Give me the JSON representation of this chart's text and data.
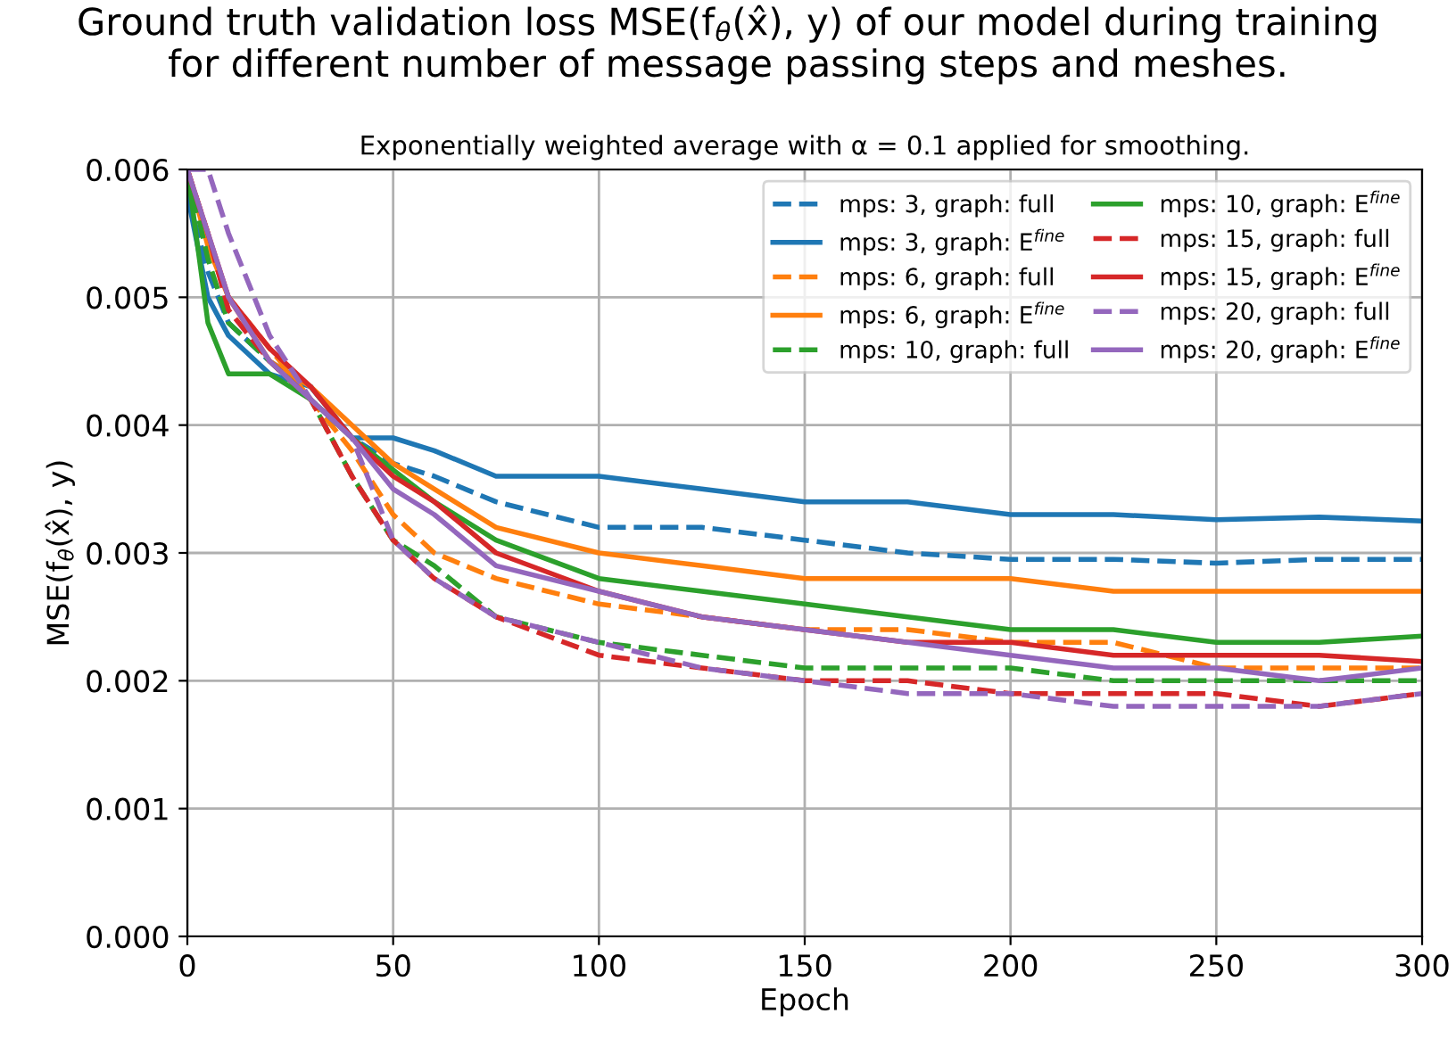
{
  "chart_data": {
    "type": "line",
    "title": "Ground truth validation loss MSE(f$_{θ}$(x̂), y) of our model during training\nfor different number of message passing steps and meshes.",
    "subtitle": "Exponentially weighted average with α = 0.1 applied for smoothing.",
    "xlabel": "Epoch",
    "ylabel": "MSE(f$_{θ}$(x̂), y)",
    "x": [
      0,
      5,
      10,
      20,
      30,
      40,
      50,
      60,
      75,
      100,
      125,
      150,
      175,
      200,
      225,
      250,
      275,
      300
    ],
    "xlim": [
      0,
      300
    ],
    "xticks": [
      0,
      50,
      100,
      150,
      200,
      250,
      300
    ],
    "ylim": [
      0,
      0.006
    ],
    "yticks": [
      {
        "value": 0,
        "label": "0.000"
      },
      {
        "value": 0.001,
        "label": "0.001"
      },
      {
        "value": 0.002,
        "label": "0.002"
      },
      {
        "value": 0.003,
        "label": "0.003"
      },
      {
        "value": 0.004,
        "label": "0.004"
      },
      {
        "value": 0.005,
        "label": "0.005"
      },
      {
        "value": 0.006,
        "label": "0.006"
      }
    ],
    "grid": true,
    "legend": "top right",
    "series": [
      {
        "name": "mps: 3, graph: full",
        "color": "#1f77b4",
        "line_style": "dashed",
        "values": [
          0.0058,
          0.0052,
          0.0048,
          0.0045,
          0.0043,
          0.0039,
          0.0037,
          0.0036,
          0.0034,
          0.0032,
          0.0032,
          0.0031,
          0.003,
          0.00295,
          0.00295,
          0.00292,
          0.00295,
          0.00295
        ]
      },
      {
        "name": "mps: 3, graph: E$^{fine}$",
        "color": "#1f77b4",
        "line_style": "solid",
        "values": [
          0.0058,
          0.005,
          0.0047,
          0.0044,
          0.0043,
          0.0039,
          0.0039,
          0.0038,
          0.0036,
          0.0036,
          0.0035,
          0.0034,
          0.0034,
          0.0033,
          0.0033,
          0.00326,
          0.00328,
          0.00325
        ]
      },
      {
        "name": "mps: 6, graph: full",
        "color": "#ff7f0e",
        "line_style": "dashed",
        "values": [
          0.006,
          0.0054,
          0.005,
          0.0046,
          0.0042,
          0.0038,
          0.0033,
          0.003,
          0.0028,
          0.0026,
          0.0025,
          0.0024,
          0.0024,
          0.0023,
          0.0023,
          0.0021,
          0.0021,
          0.0021
        ]
      },
      {
        "name": "mps: 6, graph: E$^{fine}$",
        "color": "#ff7f0e",
        "line_style": "solid",
        "values": [
          0.006,
          0.0054,
          0.005,
          0.0045,
          0.0043,
          0.004,
          0.0037,
          0.0035,
          0.0032,
          0.003,
          0.0029,
          0.0028,
          0.0028,
          0.0028,
          0.0027,
          0.0027,
          0.0027,
          0.0027
        ]
      },
      {
        "name": "mps: 10, graph: full",
        "color": "#2ca02c",
        "line_style": "dashed",
        "values": [
          0.006,
          0.0053,
          0.0048,
          0.0045,
          0.0042,
          0.0036,
          0.0031,
          0.0029,
          0.0025,
          0.0023,
          0.0022,
          0.0021,
          0.0021,
          0.0021,
          0.002,
          0.002,
          0.002,
          0.002
        ]
      },
      {
        "name": "mps: 10, graph: E$^{fine}$",
        "color": "#2ca02c",
        "line_style": "solid",
        "values": [
          0.006,
          0.0048,
          0.0044,
          0.0044,
          0.0042,
          0.0039,
          0.00365,
          0.0034,
          0.0031,
          0.0028,
          0.0027,
          0.0026,
          0.0025,
          0.0024,
          0.0024,
          0.0023,
          0.0023,
          0.00235
        ]
      },
      {
        "name": "mps: 15, graph: full",
        "color": "#d62728",
        "line_style": "dashed",
        "values": [
          0.006,
          0.0055,
          0.0049,
          0.0045,
          0.0042,
          0.0036,
          0.0031,
          0.0028,
          0.0025,
          0.0022,
          0.0021,
          0.002,
          0.002,
          0.0019,
          0.0019,
          0.0019,
          0.0018,
          0.0019
        ]
      },
      {
        "name": "mps: 15, graph: E$^{fine}$",
        "color": "#d62728",
        "line_style": "solid",
        "values": [
          0.006,
          0.0055,
          0.005,
          0.0046,
          0.0043,
          0.0039,
          0.0036,
          0.0034,
          0.003,
          0.0027,
          0.0025,
          0.0024,
          0.0023,
          0.0023,
          0.0022,
          0.0022,
          0.0022,
          0.00215
        ]
      },
      {
        "name": "mps: 20, graph: full",
        "color": "#9467bd",
        "line_style": "dashed",
        "values": [
          0.006,
          0.006,
          0.0055,
          0.0047,
          0.0042,
          0.0039,
          0.0031,
          0.0028,
          0.0025,
          0.0023,
          0.0021,
          0.002,
          0.0019,
          0.0019,
          0.0018,
          0.0018,
          0.0018,
          0.0019
        ]
      },
      {
        "name": "mps: 20, graph: E$^{fine}$",
        "color": "#9467bd",
        "line_style": "solid",
        "values": [
          0.006,
          0.0055,
          0.005,
          0.0045,
          0.0042,
          0.0039,
          0.0035,
          0.0033,
          0.0029,
          0.0027,
          0.0025,
          0.0024,
          0.0023,
          0.0022,
          0.0021,
          0.0021,
          0.002,
          0.0021
        ]
      }
    ]
  }
}
